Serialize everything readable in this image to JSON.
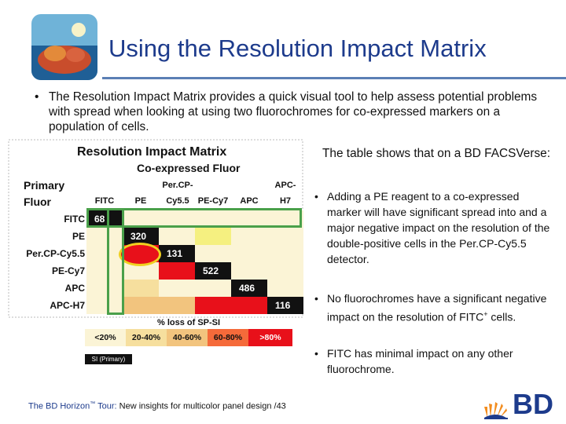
{
  "slide": {
    "title": "Using the Resolution Impact Matrix",
    "bullet_symbol": "•",
    "intro": "The Resolution Impact Matrix provides a quick visual tool to help assess potential problems with spread when looking at using two fluorochromes for co-expressed markers on a population of cells."
  },
  "matrix": {
    "title": "Resolution Impact Matrix",
    "subtitle": "Co-expressed Fluor",
    "primary_label_1": "Primary",
    "primary_label_2": "Fluor",
    "columns": [
      "FITC",
      "PE",
      "Per.CP-",
      "Cy5.5",
      "PE-Cy7",
      "APC",
      "APC-",
      "H7"
    ],
    "rows": [
      "FITC",
      "PE",
      "Per.CP-Cy5.5",
      "PE-Cy7",
      "APC",
      "APC-H7"
    ],
    "diagonal_values": [
      "68",
      "320",
      "131",
      "522",
      "486",
      "116"
    ],
    "legend_title": "% loss of SP-SI",
    "legend": [
      "<20%",
      "20-40%",
      "40-60%",
      "60-80%",
      ">80%"
    ],
    "si_label": "SI (Primary)",
    "colors": {
      "lt20": "#fbf4d6",
      "r20_40": "#f6df9e",
      "r40_60": "#f2c47e",
      "r60_80": "#f56a3a",
      "gt80": "#e8101a",
      "yellow": "#f5f080",
      "diag": "#111111"
    }
  },
  "side": {
    "heading": "The table shows that on a BD FACSVerse:",
    "b1": "Adding a PE reagent to a co-expressed marker will have significant spread into and a major negative impact on the resolution of the double-positive cells in the Per.CP-Cy5.5 detector.",
    "b2_a": "No fluorochromes have a significant negative impact on the resolution of FITC",
    "b2_sup": "+",
    "b2_b": " cells.",
    "b3": "FITC has minimal impact on any other fluorochrome."
  },
  "footer": {
    "brand": "The BD Horizon",
    "tm": "™",
    "brand_end": " Tour: ",
    "rest": "New insights for multicolor panel design /43"
  },
  "logo_text": "BD"
}
